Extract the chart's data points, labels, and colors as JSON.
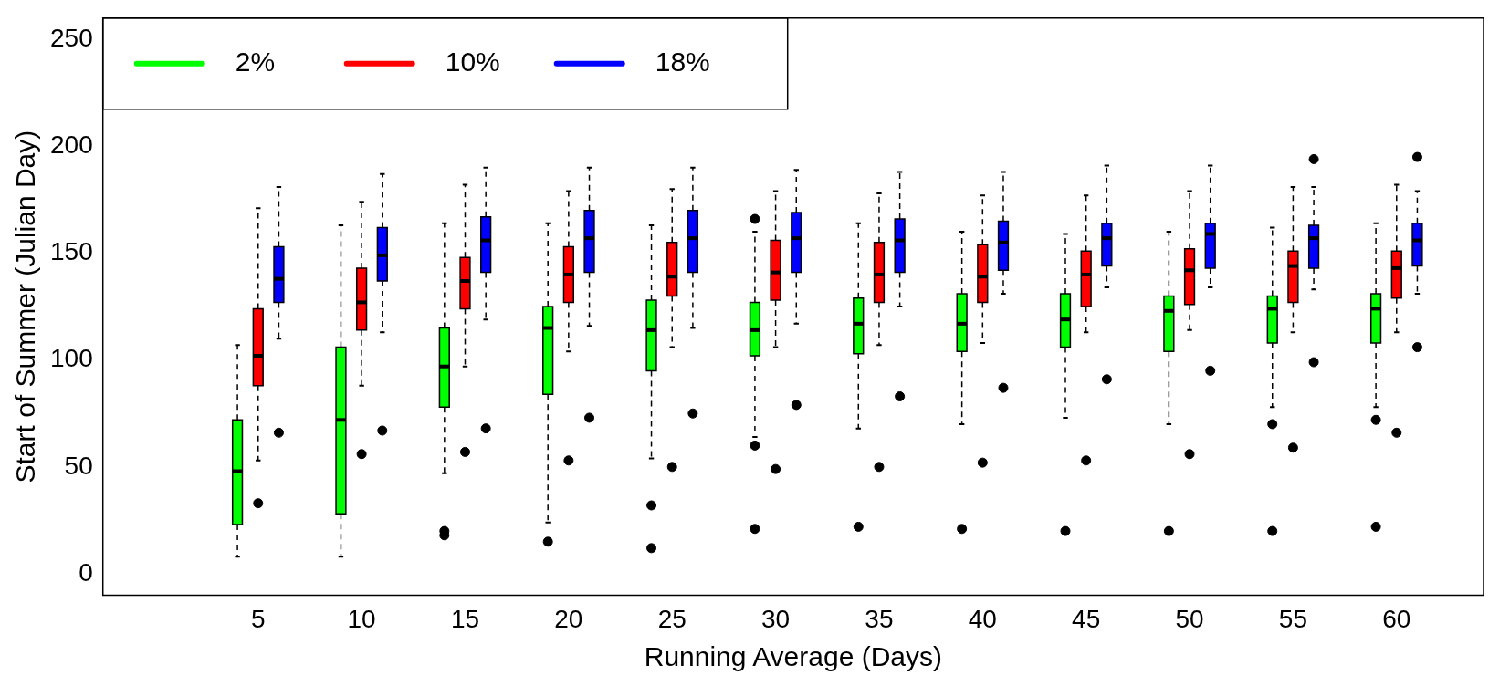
{
  "chart_data": {
    "type": "box",
    "xlabel": "Running Average (Days)",
    "ylabel": "Start of Summer (Julian Day)",
    "categories": [
      "5",
      "10",
      "15",
      "20",
      "25",
      "30",
      "35",
      "40",
      "45",
      "50",
      "55",
      "60"
    ],
    "ylim": [
      -10,
      260
    ],
    "yticks": [
      0,
      50,
      100,
      150,
      200,
      250
    ],
    "legend": "top left",
    "series": [
      {
        "name": "2%",
        "color": "#00ff00",
        "boxes": [
          {
            "low": 8,
            "q1": 23,
            "median": 48,
            "q3": 72,
            "high": 107
          },
          {
            "low": 8,
            "q1": 28,
            "median": 72,
            "q3": 106,
            "high": 163
          },
          {
            "low": 47,
            "q1": 78,
            "median": 97,
            "q3": 115,
            "high": 164,
            "outliers": [
              18,
              20
            ]
          },
          {
            "low": 24,
            "q1": 84,
            "median": 115,
            "q3": 125,
            "high": 164,
            "outliers": [
              15
            ]
          },
          {
            "low": 54,
            "q1": 95,
            "median": 114,
            "q3": 128,
            "high": 163,
            "outliers": [
              32,
              12
            ]
          },
          {
            "low": 64,
            "q1": 102,
            "median": 114,
            "q3": 127,
            "high": 160,
            "outliers": [
              166,
              60,
              21
            ]
          },
          {
            "low": 68,
            "q1": 103,
            "median": 117,
            "q3": 129,
            "high": 164,
            "outliers": [
              22
            ]
          },
          {
            "low": 70,
            "q1": 104,
            "median": 117,
            "q3": 131,
            "high": 160,
            "outliers": [
              21
            ]
          },
          {
            "low": 73,
            "q1": 106,
            "median": 119,
            "q3": 131,
            "high": 159,
            "outliers": [
              20
            ]
          },
          {
            "low": 70,
            "q1": 104,
            "median": 123,
            "q3": 130,
            "high": 160,
            "outliers": [
              20
            ]
          },
          {
            "low": 78,
            "q1": 108,
            "median": 124,
            "q3": 130,
            "high": 162,
            "outliers": [
              70,
              20
            ]
          },
          {
            "low": 78,
            "q1": 108,
            "median": 124,
            "q3": 131,
            "high": 164,
            "outliers": [
              72,
              22
            ]
          }
        ]
      },
      {
        "name": "10%",
        "color": "#ff0000",
        "boxes": [
          {
            "low": 53,
            "q1": 88,
            "median": 102,
            "q3": 124,
            "high": 171,
            "outliers": [
              33
            ]
          },
          {
            "low": 88,
            "q1": 114,
            "median": 127,
            "q3": 143,
            "high": 174,
            "outliers": [
              56
            ]
          },
          {
            "low": 97,
            "q1": 124,
            "median": 137,
            "q3": 148,
            "high": 182,
            "outliers": [
              57
            ]
          },
          {
            "low": 104,
            "q1": 127,
            "median": 140,
            "q3": 153,
            "high": 179,
            "outliers": [
              53
            ]
          },
          {
            "low": 106,
            "q1": 130,
            "median": 139,
            "q3": 155,
            "high": 180,
            "outliers": [
              50
            ]
          },
          {
            "low": 106,
            "q1": 128,
            "median": 141,
            "q3": 156,
            "high": 179,
            "outliers": [
              49
            ]
          },
          {
            "low": 107,
            "q1": 127,
            "median": 140,
            "q3": 155,
            "high": 178,
            "outliers": [
              50
            ]
          },
          {
            "low": 108,
            "q1": 127,
            "median": 139,
            "q3": 154,
            "high": 177,
            "outliers": [
              52
            ]
          },
          {
            "low": 113,
            "q1": 125,
            "median": 140,
            "q3": 151,
            "high": 177,
            "outliers": [
              53
            ]
          },
          {
            "low": 114,
            "q1": 126,
            "median": 142,
            "q3": 152,
            "high": 179,
            "outliers": [
              56
            ]
          },
          {
            "low": 113,
            "q1": 127,
            "median": 144,
            "q3": 151,
            "high": 181,
            "outliers": [
              59
            ]
          },
          {
            "low": 113,
            "q1": 129,
            "median": 143,
            "q3": 151,
            "high": 182,
            "outliers": [
              66
            ]
          }
        ]
      },
      {
        "name": "18%",
        "color": "#0000ff",
        "boxes": [
          {
            "low": 110,
            "q1": 127,
            "median": 138,
            "q3": 153,
            "high": 181,
            "outliers": [
              66
            ]
          },
          {
            "low": 113,
            "q1": 137,
            "median": 149,
            "q3": 162,
            "high": 187,
            "outliers": [
              67
            ]
          },
          {
            "low": 119,
            "q1": 141,
            "median": 156,
            "q3": 167,
            "high": 190,
            "outliers": [
              68
            ]
          },
          {
            "low": 116,
            "q1": 141,
            "median": 157,
            "q3": 170,
            "high": 190,
            "outliers": [
              73
            ]
          },
          {
            "low": 115,
            "q1": 141,
            "median": 157,
            "q3": 170,
            "high": 190,
            "outliers": [
              75
            ]
          },
          {
            "low": 117,
            "q1": 141,
            "median": 157,
            "q3": 169,
            "high": 189,
            "outliers": [
              79
            ]
          },
          {
            "low": 125,
            "q1": 141,
            "median": 156,
            "q3": 166,
            "high": 188,
            "outliers": [
              83
            ]
          },
          {
            "low": 131,
            "q1": 142,
            "median": 155,
            "q3": 165,
            "high": 188,
            "outliers": [
              87
            ]
          },
          {
            "low": 134,
            "q1": 144,
            "median": 157,
            "q3": 164,
            "high": 191,
            "outliers": [
              91
            ]
          },
          {
            "low": 134,
            "q1": 143,
            "median": 159,
            "q3": 164,
            "high": 191,
            "outliers": [
              95
            ]
          },
          {
            "low": 133,
            "q1": 143,
            "median": 157,
            "q3": 163,
            "high": 181,
            "outliers": [
              194,
              99
            ]
          },
          {
            "low": 131,
            "q1": 144,
            "median": 156,
            "q3": 164,
            "high": 179,
            "outliers": [
              195,
              106
            ]
          }
        ]
      }
    ]
  }
}
